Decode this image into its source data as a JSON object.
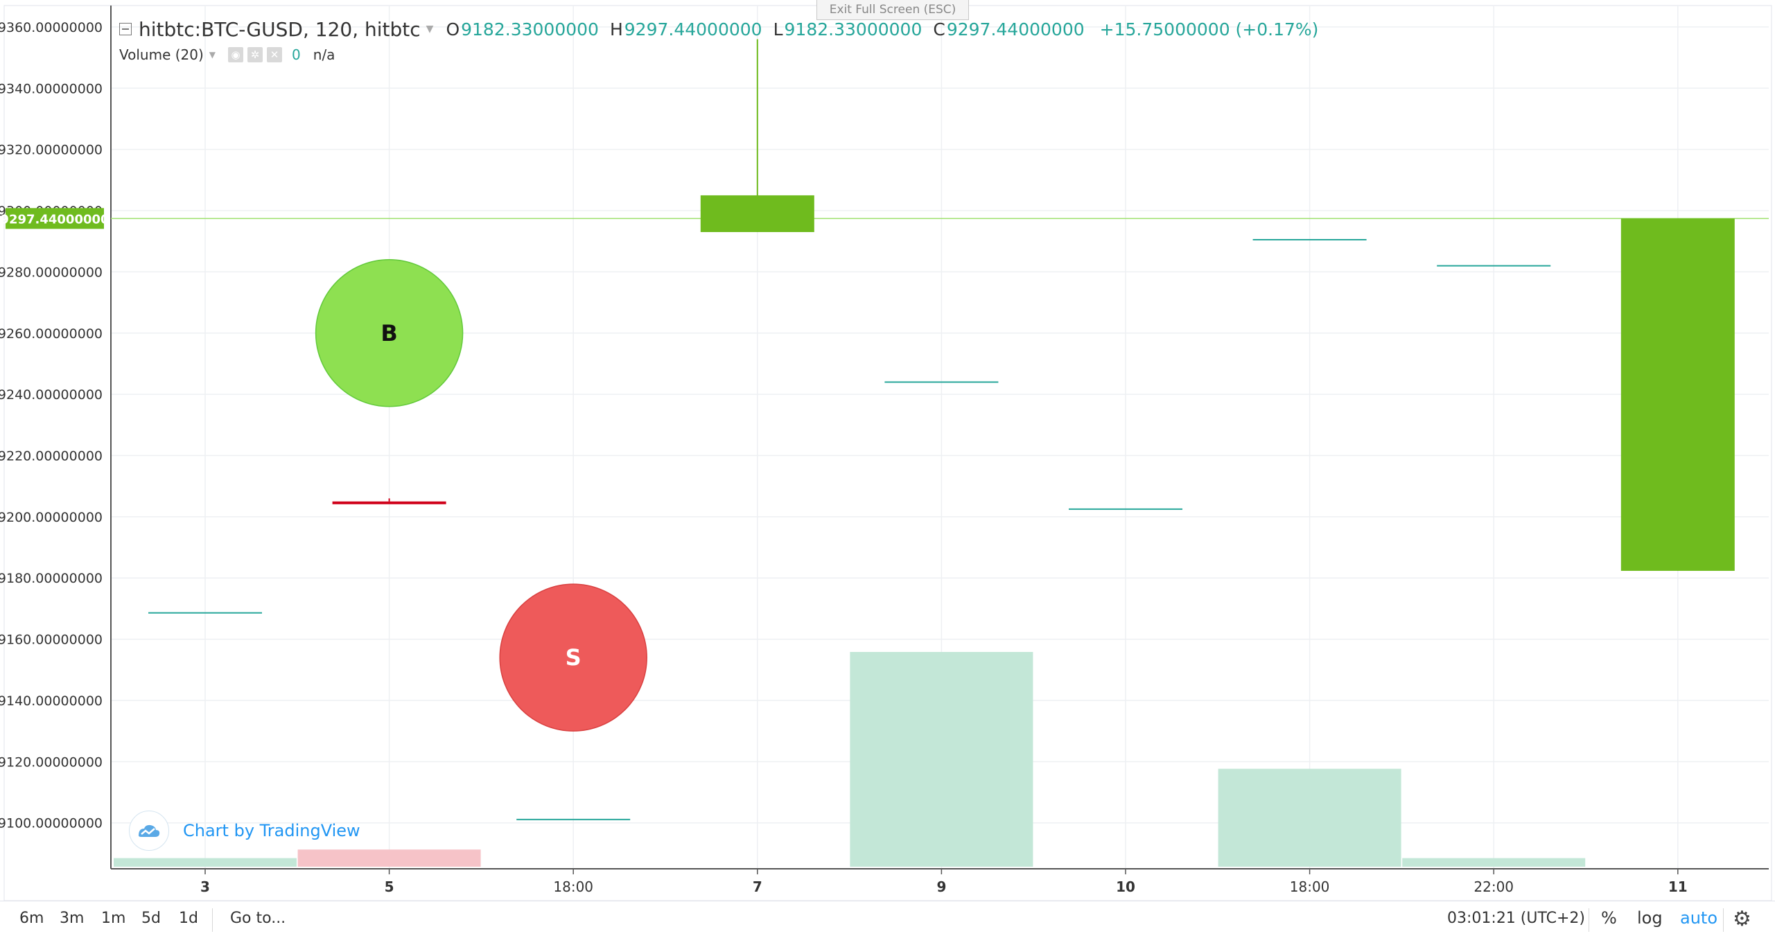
{
  "exit_fullscreen": "Exit Full Screen (ESC)",
  "header": {
    "symbol": "hitbtc:BTC-GUSD, 120, hitbtc",
    "o_label": "O",
    "o_value": "9182.33000000",
    "h_label": "H",
    "h_value": "9297.44000000",
    "l_label": "L",
    "l_value": "9182.33000000",
    "c_label": "C",
    "c_value": "9297.44000000",
    "change": "+15.75000000 (+0.17%)"
  },
  "volume": {
    "title": "Volume (20)",
    "value": "0",
    "na": "n/a"
  },
  "watermark": "Chart by TradingView",
  "price_label": "9297.44000000",
  "bottom": {
    "ranges": [
      "6m",
      "3m",
      "1m",
      "5d",
      "1d"
    ],
    "goto": "Go to...",
    "clock": "03:01:21 (UTC+2)",
    "percent": "%",
    "log": "log",
    "auto": "auto"
  },
  "colors": {
    "up": "#6fbb1e",
    "up_light": "#8ee051",
    "down": "#d0021b",
    "sell_marker": "#ee5a5a",
    "volume_up": "#c3e7d7",
    "volume_down": "#f6c3c8",
    "flat_line": "#26a69a",
    "grid": "#eef0f3"
  },
  "chart_data": {
    "type": "candlestick",
    "y_axis": {
      "min": 9085,
      "max": 9367,
      "ticks": [
        "9100.00000000",
        "9120.00000000",
        "9140.00000000",
        "9160.00000000",
        "9180.00000000",
        "9200.00000000",
        "9220.00000000",
        "9240.00000000",
        "9260.00000000",
        "9280.00000000",
        "9300.00000000",
        "9320.00000000",
        "9340.00000000",
        "9360.00000000"
      ]
    },
    "x_ticks": [
      {
        "label": "3",
        "bar": 0
      },
      {
        "label": "5",
        "bar": 1
      },
      {
        "label": "18:00",
        "bar": 2
      },
      {
        "label": "7",
        "bar": 3
      },
      {
        "label": "9",
        "bar": 4
      },
      {
        "label": "10",
        "bar": 5
      },
      {
        "label": "18:00",
        "bar": 6
      },
      {
        "label": "22:00",
        "bar": 7
      },
      {
        "label": "11",
        "bar": 8
      }
    ],
    "candles": [
      {
        "o": 9168.6,
        "h": 9168.6,
        "l": 9168.6,
        "c": 9168.6,
        "dir": "flat"
      },
      {
        "o": 9205.0,
        "h": 9206.0,
        "l": 9205.0,
        "c": 9205.0,
        "dir": "down"
      },
      {
        "o": 9101.1,
        "h": 9101.1,
        "l": 9101.1,
        "c": 9101.1,
        "dir": "flat"
      },
      {
        "o": 9293.0,
        "h": 9356.0,
        "l": 9293.0,
        "c": 9305.0,
        "dir": "up"
      },
      {
        "o": 9244.0,
        "h": 9244.0,
        "l": 9244.0,
        "c": 9244.0,
        "dir": "flat"
      },
      {
        "o": 9202.5,
        "h": 9202.5,
        "l": 9202.5,
        "c": 9202.5,
        "dir": "flat"
      },
      {
        "o": 9290.5,
        "h": 9290.5,
        "l": 9290.5,
        "c": 9290.5,
        "dir": "flat"
      },
      {
        "o": 9282.0,
        "h": 9282.0,
        "l": 9282.0,
        "c": 9282.0,
        "dir": "flat"
      },
      {
        "o": 9182.33,
        "h": 9297.44,
        "l": 9182.33,
        "c": 9297.44,
        "dir": "up"
      }
    ],
    "volume_bars": [
      {
        "value": 0.5,
        "dir": "up"
      },
      {
        "value": 1.0,
        "dir": "down"
      },
      {
        "value": 0,
        "dir": "up"
      },
      {
        "value": 0,
        "dir": "up"
      },
      {
        "value": 12.5,
        "dir": "up"
      },
      {
        "value": 0,
        "dir": "up"
      },
      {
        "value": 5.7,
        "dir": "up"
      },
      {
        "value": 0.5,
        "dir": "up"
      },
      {
        "value": 0,
        "dir": "up"
      }
    ],
    "volume_max": 12.5,
    "markers": [
      {
        "label": "B",
        "bar": 1,
        "price": 9260,
        "kind": "buy"
      },
      {
        "label": "S",
        "bar": 2,
        "price": 9154,
        "kind": "sell"
      }
    ],
    "last_price": 9297.44
  }
}
